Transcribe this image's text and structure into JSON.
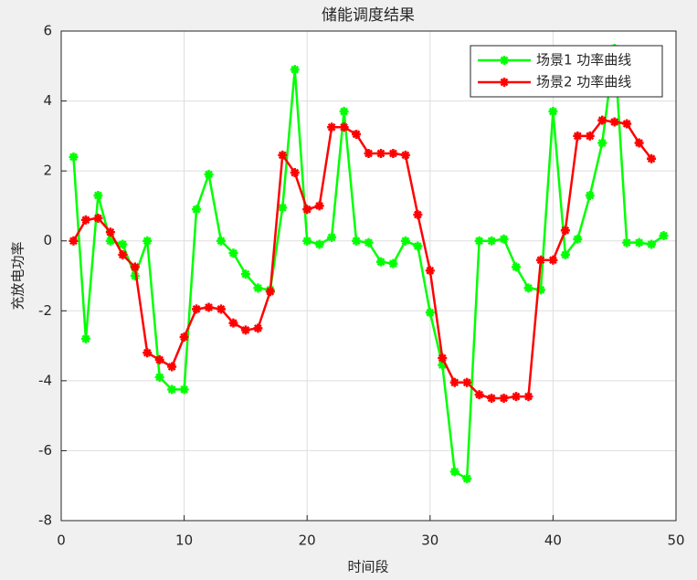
{
  "chart_data": {
    "type": "line",
    "title": "储能调度结果",
    "x_label": "时间段",
    "y_label": "充放电功率",
    "x": [
      1,
      2,
      3,
      4,
      5,
      6,
      7,
      8,
      9,
      10,
      11,
      12,
      13,
      14,
      15,
      16,
      17,
      18,
      19,
      20,
      21,
      22,
      23,
      24,
      25,
      26,
      27,
      28,
      29,
      30,
      31,
      32,
      33,
      34,
      35,
      36,
      37,
      38,
      39,
      40,
      41,
      42,
      43,
      44,
      45,
      46,
      47,
      48,
      49
    ],
    "series": [
      {
        "name": "场景1 功率曲线",
        "color": "#00ff00",
        "values": [
          2.4,
          -2.8,
          1.3,
          0.0,
          -0.1,
          -1.0,
          0.0,
          -3.9,
          -4.25,
          -4.25,
          0.9,
          1.9,
          0.0,
          -0.35,
          -0.95,
          -1.35,
          -1.4,
          0.95,
          4.9,
          0.0,
          -0.1,
          0.1,
          3.7,
          0.0,
          -0.05,
          -0.6,
          -0.65,
          0.0,
          -0.15,
          -2.05,
          -3.55,
          -6.6,
          -6.8,
          0.0,
          0.0,
          0.05,
          -0.75,
          -1.35,
          -1.4,
          3.7,
          -0.4,
          0.05,
          1.3,
          2.8,
          5.5,
          -0.05,
          -0.05,
          -0.1,
          0.15
        ]
      },
      {
        "name": "场景2 功率曲线",
        "color": "#ff0000",
        "values": [
          0.0,
          0.6,
          0.65,
          0.25,
          -0.4,
          -0.75,
          -3.2,
          -3.4,
          -3.6,
          -2.75,
          -1.95,
          -1.9,
          -1.95,
          -2.35,
          -2.55,
          -2.5,
          -1.45,
          2.45,
          1.95,
          0.9,
          1.0,
          3.25,
          3.25,
          3.05,
          2.5,
          2.5,
          2.5,
          2.45,
          0.75,
          -0.85,
          -3.35,
          -4.05,
          -4.05,
          -4.4,
          -4.5,
          -4.5,
          -4.45,
          -4.45,
          -0.55,
          -0.55,
          0.3,
          3.0,
          3.0,
          3.45,
          3.4,
          3.35,
          2.8,
          2.35,
          null
        ]
      }
    ],
    "xlim": [
      0,
      50
    ],
    "xticks": [
      0,
      10,
      20,
      30,
      40,
      50
    ],
    "ylim": [
      -8,
      6
    ],
    "yticks": [
      -8,
      -6,
      -4,
      -2,
      0,
      2,
      4,
      6
    ],
    "grid": true,
    "legend": "top-right"
  }
}
